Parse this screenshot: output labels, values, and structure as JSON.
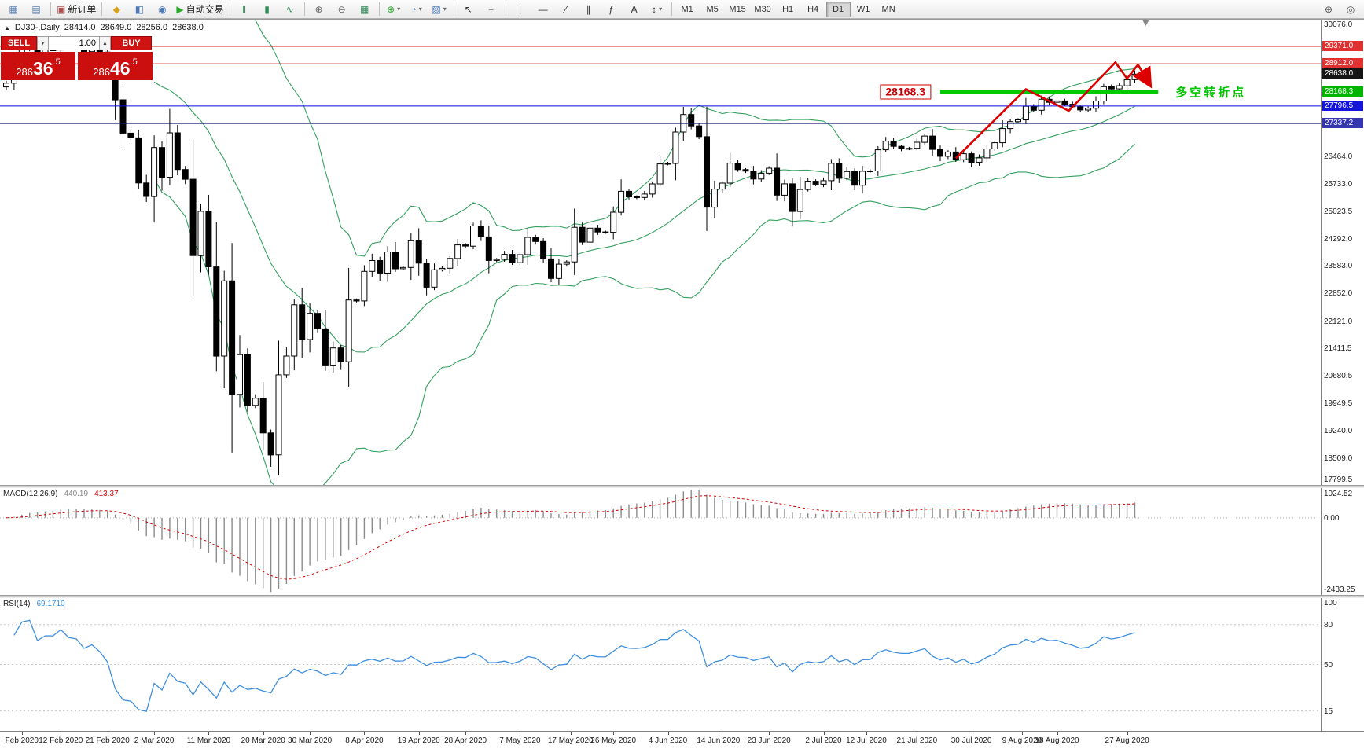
{
  "colors": {
    "bollinger": "#35a05f",
    "line_red": "#e02020",
    "line_blue": "#0a0ae0",
    "line_navy": "#1a1a80",
    "line_green": "#00ca00",
    "trend_arrow": "#dd0000",
    "histogram": "#8c8c8c",
    "macd_signal": "#d00000",
    "rsi_line": "#3f8fde",
    "accent_red": "#cf1212"
  },
  "toolbar": {
    "left_groups": [
      {
        "items": [
          {
            "kind": "icon",
            "name": "new-chart-icon",
            "glyph": "▦",
            "color": "#5a7fb0"
          },
          {
            "kind": "icon",
            "name": "profiles-icon",
            "glyph": "▤",
            "color": "#5a7fb0"
          }
        ]
      },
      {
        "items": [
          {
            "kind": "labeled",
            "name": "new-order-button",
            "glyph": "▣",
            "color": "#b05050",
            "label": "新订单"
          }
        ]
      },
      {
        "items": [
          {
            "kind": "icon",
            "name": "market-watch-icon",
            "glyph": "◆",
            "color": "#d8a21a"
          },
          {
            "kind": "icon",
            "name": "data-window-icon",
            "glyph": "◧",
            "color": "#4a78b8"
          },
          {
            "kind": "icon",
            "name": "navigator-icon",
            "glyph": "◉",
            "color": "#4a78b8"
          },
          {
            "kind": "labeled",
            "name": "autotrading-button",
            "glyph": "▶",
            "color": "#2daa2d",
            "label": "自动交易"
          }
        ]
      },
      {
        "items": [
          {
            "kind": "icon",
            "name": "bar-chart-mode-icon",
            "glyph": "‖",
            "color": "#2e8b57"
          },
          {
            "kind": "icon",
            "name": "candlestick-mode-icon",
            "glyph": "▮",
            "color": "#2e8b57"
          },
          {
            "kind": "icon",
            "name": "line-chart-mode-icon",
            "glyph": "∿",
            "color": "#2e8b57"
          }
        ]
      },
      {
        "items": [
          {
            "kind": "icon",
            "name": "zoom-in-icon",
            "glyph": "⊕",
            "color": "#666666"
          },
          {
            "kind": "icon",
            "name": "zoom-out-icon",
            "glyph": "⊖",
            "color": "#666666"
          },
          {
            "kind": "icon",
            "name": "tile-windows-icon",
            "glyph": "▦",
            "color": "#2e8b57"
          }
        ]
      },
      {
        "items": [
          {
            "kind": "dropdown",
            "name": "indicators-button",
            "glyph": "⊕",
            "color": "#2daa2d"
          },
          {
            "kind": "dropdown",
            "name": "periods-button",
            "glyph": "◔",
            "color": "#4a78b8"
          },
          {
            "kind": "dropdown",
            "name": "templates-button",
            "glyph": "▨",
            "color": "#4a78b8"
          }
        ]
      },
      {
        "items": [
          {
            "kind": "icon",
            "name": "cursor-icon",
            "glyph": "↖",
            "color": "#333333"
          },
          {
            "kind": "icon",
            "name": "crosshair-icon",
            "glyph": "+",
            "color": "#333333"
          }
        ]
      },
      {
        "items": [
          {
            "kind": "icon",
            "name": "vertical-line-icon",
            "glyph": "|",
            "color": "#333333"
          },
          {
            "kind": "icon",
            "name": "horizontal-line-icon",
            "glyph": "―",
            "color": "#333333"
          },
          {
            "kind": "icon",
            "name": "trendline-icon",
            "glyph": "∕",
            "color": "#333333"
          },
          {
            "kind": "icon",
            "name": "channel-icon",
            "glyph": "∥",
            "color": "#333333"
          },
          {
            "kind": "icon",
            "name": "fibonacci-icon",
            "glyph": "ƒ",
            "color": "#333333"
          },
          {
            "kind": "icon",
            "name": "text-icon",
            "glyph": "A",
            "color": "#333333"
          },
          {
            "kind": "dropdown",
            "name": "arrows-tool-icon",
            "glyph": "↕",
            "color": "#333333"
          }
        ]
      }
    ],
    "timeframes": [
      "M1",
      "M5",
      "M15",
      "M30",
      "H1",
      "H4",
      "D1",
      "W1",
      "MN"
    ],
    "active_timeframe": "D1",
    "right_items": [
      {
        "kind": "icon",
        "name": "search-plus-icon",
        "glyph": "⊕",
        "color": "#555555"
      },
      {
        "kind": "icon",
        "name": "search-icon",
        "glyph": "◎",
        "color": "#555555"
      }
    ]
  },
  "symbol": {
    "info_label": "DJ30-,Daily",
    "open": "28414.0",
    "high": "28649.0",
    "low": "28256.0",
    "close": "28638.0"
  },
  "trade_panel": {
    "sell_label": "SELL",
    "buy_label": "BUY",
    "volume": "1.00",
    "sell_price": "28636.5",
    "buy_price": "28646.5",
    "sell_price_parts": {
      "small": "286",
      "big": "36",
      "sup": ".5"
    },
    "buy_price_parts": {
      "small": "286",
      "big": "46",
      "sup": ".5"
    }
  },
  "annotations": {
    "level_label": "28168.3",
    "note_label": "多空转折点"
  },
  "levels": {
    "red_lines": [
      29371.0,
      28912.0
    ],
    "blue_line": 27796.5,
    "navy_line": 27337.2,
    "green_segment": {
      "price": 28168.3,
      "x1_idx": 120,
      "x2_idx": 148
    }
  },
  "axis": {
    "main_ticks": [
      30076.0,
      26464.0,
      25733.0,
      25023.5,
      24292.0,
      23583.0,
      22852.0,
      22121.0,
      21411.5,
      20680.5,
      19949.5,
      19240.0,
      18509.0,
      17799.5
    ],
    "badges": [
      {
        "value": 29371.0,
        "label": "29371.0",
        "color": "#e03030"
      },
      {
        "value": 28912.0,
        "label": "28912.0",
        "color": "#e03030"
      },
      {
        "value": 28638.0,
        "label": "28638.0",
        "color": "#151515"
      },
      {
        "value": 28168.3,
        "label": "28168.3",
        "color": "#00b400"
      },
      {
        "value": 27796.5,
        "label": "27796.5",
        "color": "#1414dc"
      },
      {
        "value": 27337.2,
        "label": "27337.2",
        "color": "#3535b2"
      }
    ],
    "macd_ticks": {
      "top": "1024.52",
      "zero": "0.00",
      "bottom": "-2433.25"
    },
    "rsi_ticks": [
      {
        "value": 100,
        "label": "100"
      },
      {
        "value": 80,
        "label": "80"
      },
      {
        "value": 50,
        "label": "50"
      },
      {
        "value": 15,
        "label": "15"
      }
    ]
  },
  "indicators": {
    "macd_name": "MACD(12,26,9)",
    "macd_value": "440.19",
    "macd_signal": "413.37",
    "rsi_name": "RSI(14)",
    "rsi_value": "69.1710"
  },
  "dates": [
    {
      "label": "Feb 2020",
      "idx": 2
    },
    {
      "label": "12 Feb 2020",
      "idx": 7
    },
    {
      "label": "21 Feb 2020",
      "idx": 13
    },
    {
      "label": "2 Mar 2020",
      "idx": 19
    },
    {
      "label": "11 Mar 2020",
      "idx": 26
    },
    {
      "label": "20 Mar 2020",
      "idx": 33
    },
    {
      "label": "30 Mar 2020",
      "idx": 39
    },
    {
      "label": "8 Apr 2020",
      "idx": 46
    },
    {
      "label": "19 Apr 2020",
      "idx": 53
    },
    {
      "label": "28 Apr 2020",
      "idx": 59
    },
    {
      "label": "7 May 2020",
      "idx": 66
    },
    {
      "label": "17 May 2020",
      "idx": 72.5
    },
    {
      "label": "26 May 2020",
      "idx": 78
    },
    {
      "label": "4 Jun 2020",
      "idx": 85
    },
    {
      "label": "14 Jun 2020",
      "idx": 91.5
    },
    {
      "label": "23 Jun 2020",
      "idx": 98
    },
    {
      "label": "2 Jul 2020",
      "idx": 105
    },
    {
      "label": "12 Jul 2020",
      "idx": 110.5
    },
    {
      "label": "21 Jul 2020",
      "idx": 117
    },
    {
      "label": "30 Jul 2020",
      "idx": 124
    },
    {
      "label": "9 Aug 2020",
      "idx": 130.5
    },
    {
      "label": "18 Aug 2020",
      "idx": 135
    },
    {
      "label": "27 Aug 2020",
      "idx": 144
    }
  ],
  "chart_data": {
    "type": "candlestick",
    "symbol": "DJ30-",
    "timeframe": "Daily",
    "price_range": {
      "top": 30076.0,
      "bottom": 17799.5
    },
    "first_open": 28300,
    "closes": [
      28400,
      28808,
      29290,
      29380,
      29103,
      29277,
      29276,
      29551,
      29423,
      29398,
      29232,
      29348,
      29219,
      28992,
      27960,
      27081,
      26957,
      25766,
      25409,
      26703,
      25917,
      27090,
      26121,
      25864,
      23851,
      25018,
      23553,
      21200,
      23185,
      20188,
      21237,
      19898,
      20087,
      19173,
      18591,
      20704,
      21200,
      22552,
      21636,
      22327,
      21917,
      20943,
      21413,
      21052,
      22679,
      22653,
      23433,
      23719,
      23390,
      23949,
      23504,
      23537,
      24242,
      23650,
      23018,
      23475,
      23515,
      23775,
      24133,
      24101,
      24633,
      24345,
      23723,
      23749,
      23883,
      23664,
      23875,
      24331,
      24221,
      23764,
      23247,
      23625,
      23685,
      24597,
      24206,
      24575,
      24474,
      24465,
      24995,
      25548,
      25400,
      25383,
      25475,
      25742,
      26269,
      26281,
      27110,
      27572,
      27272,
      26989,
      25128,
      25605,
      25763,
      26289,
      26119,
      26080,
      25871,
      26024,
      26156,
      25445,
      25745,
      25015,
      25595,
      25812,
      25734,
      25827,
      26286,
      25890,
      26067,
      25706,
      26075,
      26085,
      26642,
      26870,
      26734,
      26671,
      26680,
      26840,
      27005,
      26652,
      26469,
      26584,
      26379,
      26539,
      26313,
      26428,
      26664,
      26828,
      27201,
      27386,
      27433,
      27791,
      27686,
      27976,
      27896,
      27931,
      27844,
      27778,
      27692,
      27739,
      27930,
      28308,
      28248,
      28331,
      28492,
      28638
    ],
    "indicators": {
      "bollinger_period": 20,
      "bollinger_dev": 2,
      "macd": [
        12,
        26,
        9
      ],
      "rsi_period": 14
    },
    "trend_arrow_points": [
      [
        122,
        26420
      ],
      [
        131,
        28240
      ],
      [
        136.5,
        27670
      ],
      [
        142.5,
        28950
      ],
      [
        144,
        28520
      ],
      [
        145.4,
        28890
      ],
      [
        146.8,
        28400
      ]
    ]
  }
}
